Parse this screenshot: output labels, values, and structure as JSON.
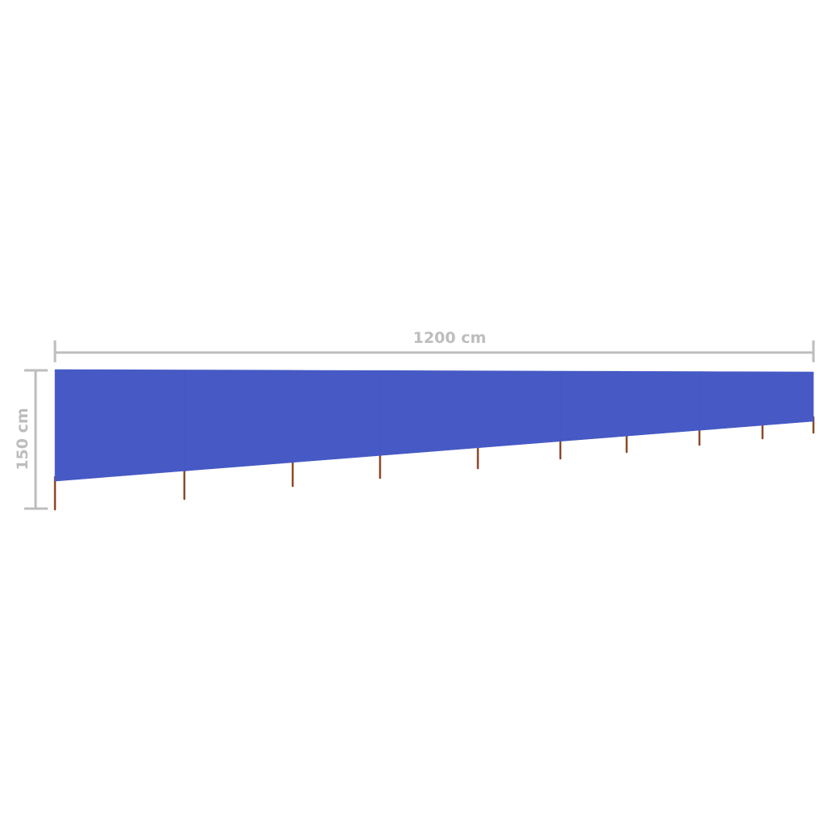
{
  "product": {
    "name": "windscreen",
    "fabric_color": "#4659c4",
    "pole_color": "#8a4a28",
    "panel_count": 9,
    "pole_count": 10
  },
  "dimensions": {
    "width_label": "1200 cm",
    "height_label": "150 cm",
    "line_color": "#bdbdbd"
  }
}
